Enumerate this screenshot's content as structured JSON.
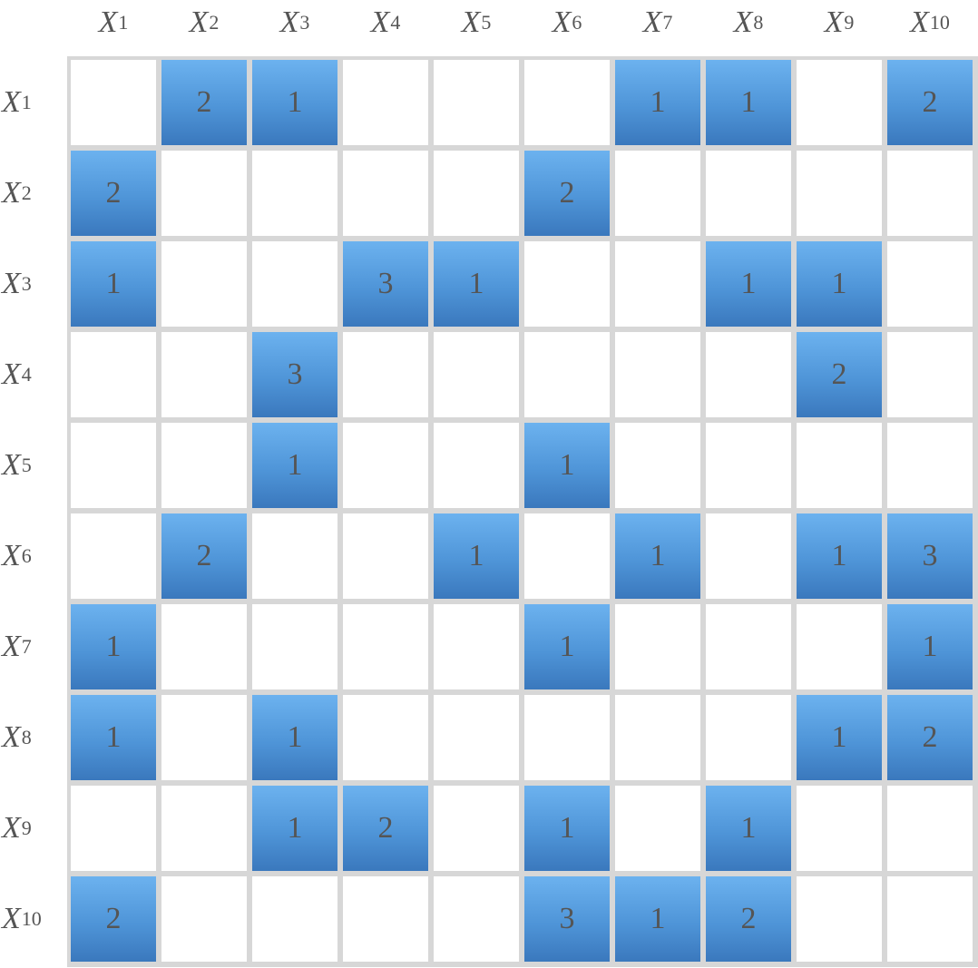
{
  "labels": {
    "prefix": "X",
    "columns": [
      "1",
      "2",
      "3",
      "4",
      "5",
      "6",
      "7",
      "8",
      "9",
      "10"
    ],
    "rows": [
      "1",
      "2",
      "3",
      "4",
      "5",
      "6",
      "7",
      "8",
      "9",
      "10"
    ]
  },
  "colors": {
    "cell_fill_top": "#6cb2ef",
    "cell_fill_bottom": "#3a78bd",
    "grid_line": "#d7d7d7",
    "text": "#555555"
  },
  "matrix": [
    [
      "",
      "2",
      "1",
      "",
      "",
      "",
      "1",
      "1",
      "",
      "2"
    ],
    [
      "2",
      "",
      "",
      "",
      "",
      "2",
      "",
      "",
      "",
      ""
    ],
    [
      "1",
      "",
      "",
      "3",
      "1",
      "",
      "",
      "1",
      "1",
      ""
    ],
    [
      "",
      "",
      "3",
      "",
      "",
      "",
      "",
      "",
      "2",
      ""
    ],
    [
      "",
      "",
      "1",
      "",
      "",
      "1",
      "",
      "",
      "",
      ""
    ],
    [
      "",
      "2",
      "",
      "",
      "1",
      "",
      "1",
      "",
      "1",
      "3"
    ],
    [
      "1",
      "",
      "",
      "",
      "",
      "1",
      "",
      "",
      "",
      "1"
    ],
    [
      "1",
      "",
      "1",
      "",
      "",
      "",
      "",
      "",
      "1",
      "2"
    ],
    [
      "",
      "",
      "1",
      "2",
      "",
      "1",
      "",
      "1",
      "",
      ""
    ],
    [
      "2",
      "",
      "",
      "",
      "",
      "3",
      "1",
      "2",
      "",
      ""
    ]
  ]
}
